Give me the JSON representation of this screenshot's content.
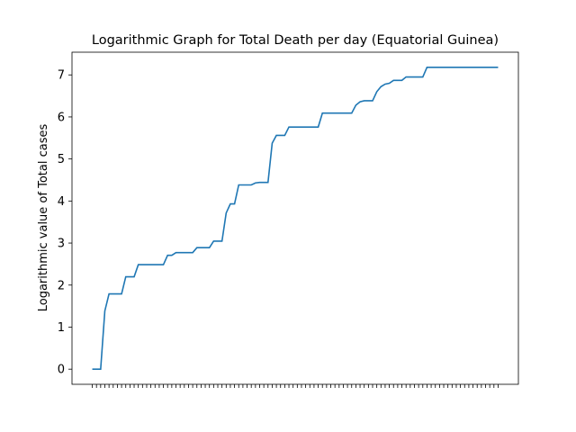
{
  "chart_data": {
    "type": "line",
    "title": "Logarithmic Graph for Total Death per day (Equatorial Guinea)",
    "y_label": "Logarithmic value of Total cases",
    "categories": [
      null,
      null,
      null,
      null,
      null,
      null,
      null,
      null,
      null,
      null,
      null,
      null,
      null,
      null,
      null,
      null,
      null,
      null,
      null,
      null,
      null,
      null,
      null,
      null,
      null,
      null,
      null,
      null,
      null,
      null,
      null,
      null,
      null,
      null,
      null,
      null,
      null,
      null,
      null,
      null,
      null,
      null,
      null,
      null,
      null,
      null,
      null,
      null,
      null,
      null,
      null,
      null,
      null,
      null,
      null,
      null,
      null,
      null,
      null,
      null,
      null,
      null,
      null,
      null,
      null,
      null,
      null,
      null,
      null,
      null,
      null,
      null,
      null,
      null,
      null,
      null,
      null,
      null,
      null,
      null,
      null,
      null,
      null,
      null,
      null,
      null,
      null,
      null,
      null,
      null,
      null,
      null,
      null,
      null,
      null,
      null,
      null,
      null
    ],
    "series": [
      {
        "color": "#1f77b4",
        "values": [
          0,
          0,
          0,
          1.386,
          1.79,
          1.79,
          1.79,
          1.79,
          2.197,
          2.197,
          2.197,
          2.485,
          2.485,
          2.485,
          2.485,
          2.485,
          2.485,
          2.485,
          2.708,
          2.708,
          2.773,
          2.773,
          2.773,
          2.773,
          2.773,
          2.89,
          2.89,
          2.89,
          2.89,
          3.045,
          3.045,
          3.045,
          3.714,
          3.932,
          3.932,
          4.382,
          4.382,
          4.382,
          4.382,
          4.431,
          4.443,
          4.443,
          4.443,
          5.375,
          5.56,
          5.56,
          5.56,
          5.76,
          5.76,
          5.76,
          5.76,
          5.76,
          5.76,
          5.76,
          5.76,
          6.09,
          6.09,
          6.09,
          6.09,
          6.09,
          6.09,
          6.09,
          6.09,
          6.28,
          6.36,
          6.385,
          6.385,
          6.385,
          6.6,
          6.72,
          6.78,
          6.8,
          6.87,
          6.87,
          6.87,
          6.95,
          6.95,
          6.95,
          6.95,
          6.95,
          7.18,
          7.18,
          7.18,
          7.18,
          7.18,
          7.18,
          7.18,
          7.18,
          7.18,
          7.18,
          7.18,
          7.18,
          7.18,
          7.18,
          7.18,
          7.18,
          7.18,
          7.18
        ]
      }
    ],
    "ylim": [
      -0.36,
      7.54
    ],
    "yticks": [
      0,
      1,
      2,
      3,
      4,
      5,
      6,
      7
    ]
  }
}
